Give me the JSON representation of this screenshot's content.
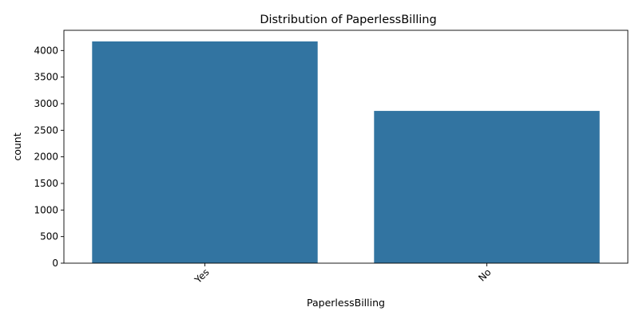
{
  "chart_data": {
    "type": "bar",
    "title": "Distribution of PaperlessBilling",
    "xlabel": "PaperlessBilling",
    "ylabel": "count",
    "categories": [
      "Yes",
      "No"
    ],
    "values": [
      4171,
      2864
    ],
    "ylim": [
      0,
      4380
    ],
    "yticks": [
      0,
      500,
      1000,
      1500,
      2000,
      2500,
      3000,
      3500,
      4000
    ],
    "xtick_rotation_deg": 45,
    "grid": false,
    "legend": "none",
    "bar_color": "#3274a1"
  }
}
